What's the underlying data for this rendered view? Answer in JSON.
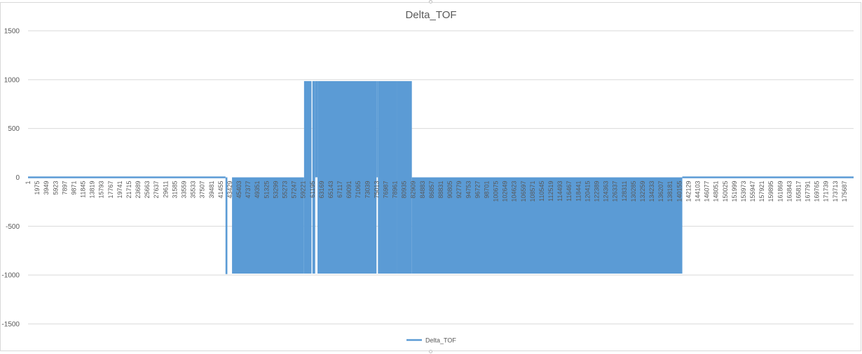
{
  "chart_data": {
    "type": "area",
    "title": "Delta_TOF",
    "xlabel": "",
    "ylabel": "",
    "ylim": [
      -1500,
      1500
    ],
    "y_ticks": [
      1500,
      1000,
      500,
      0,
      -500,
      -1000,
      -1500
    ],
    "x_range": [
      1,
      177661
    ],
    "x_tick_labels": [
      "1",
      "1975",
      "3949",
      "5923",
      "7897",
      "9871",
      "11845",
      "13819",
      "15793",
      "17767",
      "19741",
      "21715",
      "23689",
      "25663",
      "27637",
      "29611",
      "31585",
      "33559",
      "35533",
      "37507",
      "39481",
      "41455",
      "43429",
      "45403",
      "47377",
      "49351",
      "51325",
      "53299",
      "55273",
      "57247",
      "59221",
      "61195",
      "63169",
      "65143",
      "67117",
      "69091",
      "71065",
      "73039",
      "75013",
      "76987",
      "78961",
      "80935",
      "82909",
      "84883",
      "86857",
      "88831",
      "90805",
      "92779",
      "94753",
      "96727",
      "98701",
      "100675",
      "102649",
      "104623",
      "106597",
      "108571",
      "110545",
      "112519",
      "114493",
      "116467",
      "118441",
      "120415",
      "122389",
      "124363",
      "126337",
      "128311",
      "130285",
      "132259",
      "134233",
      "136207",
      "138181",
      "140155",
      "142129",
      "144103",
      "146077",
      "148051",
      "150025",
      "151999",
      "153973",
      "155947",
      "157921",
      "159895",
      "161869",
      "163843",
      "165817",
      "167791",
      "169765",
      "171739",
      "173713",
      "175687"
    ],
    "grid": true,
    "legend": "bottom",
    "series": [
      {
        "name": "Delta_TOF",
        "color": "#5b9bd5",
        "segments": [
          {
            "x_start": 1,
            "x_end": 42500,
            "y_min": 0,
            "y_max": 0
          },
          {
            "x_start": 42500,
            "x_end": 42900,
            "y_min": -990,
            "y_max": 0
          },
          {
            "x_start": 43900,
            "x_end": 59400,
            "y_min": -985,
            "y_max": 0
          },
          {
            "x_start": 59400,
            "x_end": 61000,
            "y_min": -985,
            "y_max": 985
          },
          {
            "x_start": 61200,
            "x_end": 61800,
            "y_min": -985,
            "y_max": 985
          },
          {
            "x_start": 61800,
            "x_end": 62300,
            "y_min": 0,
            "y_max": 985
          },
          {
            "x_start": 62300,
            "x_end": 75000,
            "y_min": -985,
            "y_max": 985
          },
          {
            "x_start": 75000,
            "x_end": 75300,
            "y_min": 0,
            "y_max": 985
          },
          {
            "x_start": 75300,
            "x_end": 79400,
            "y_min": -985,
            "y_max": 985
          },
          {
            "x_start": 79400,
            "x_end": 82600,
            "y_min": -985,
            "y_max": 985
          },
          {
            "x_start": 82600,
            "x_end": 140800,
            "y_min": -985,
            "y_max": 0
          },
          {
            "x_start": 140800,
            "x_end": 177661,
            "y_min": 0,
            "y_max": 0
          }
        ]
      }
    ]
  }
}
